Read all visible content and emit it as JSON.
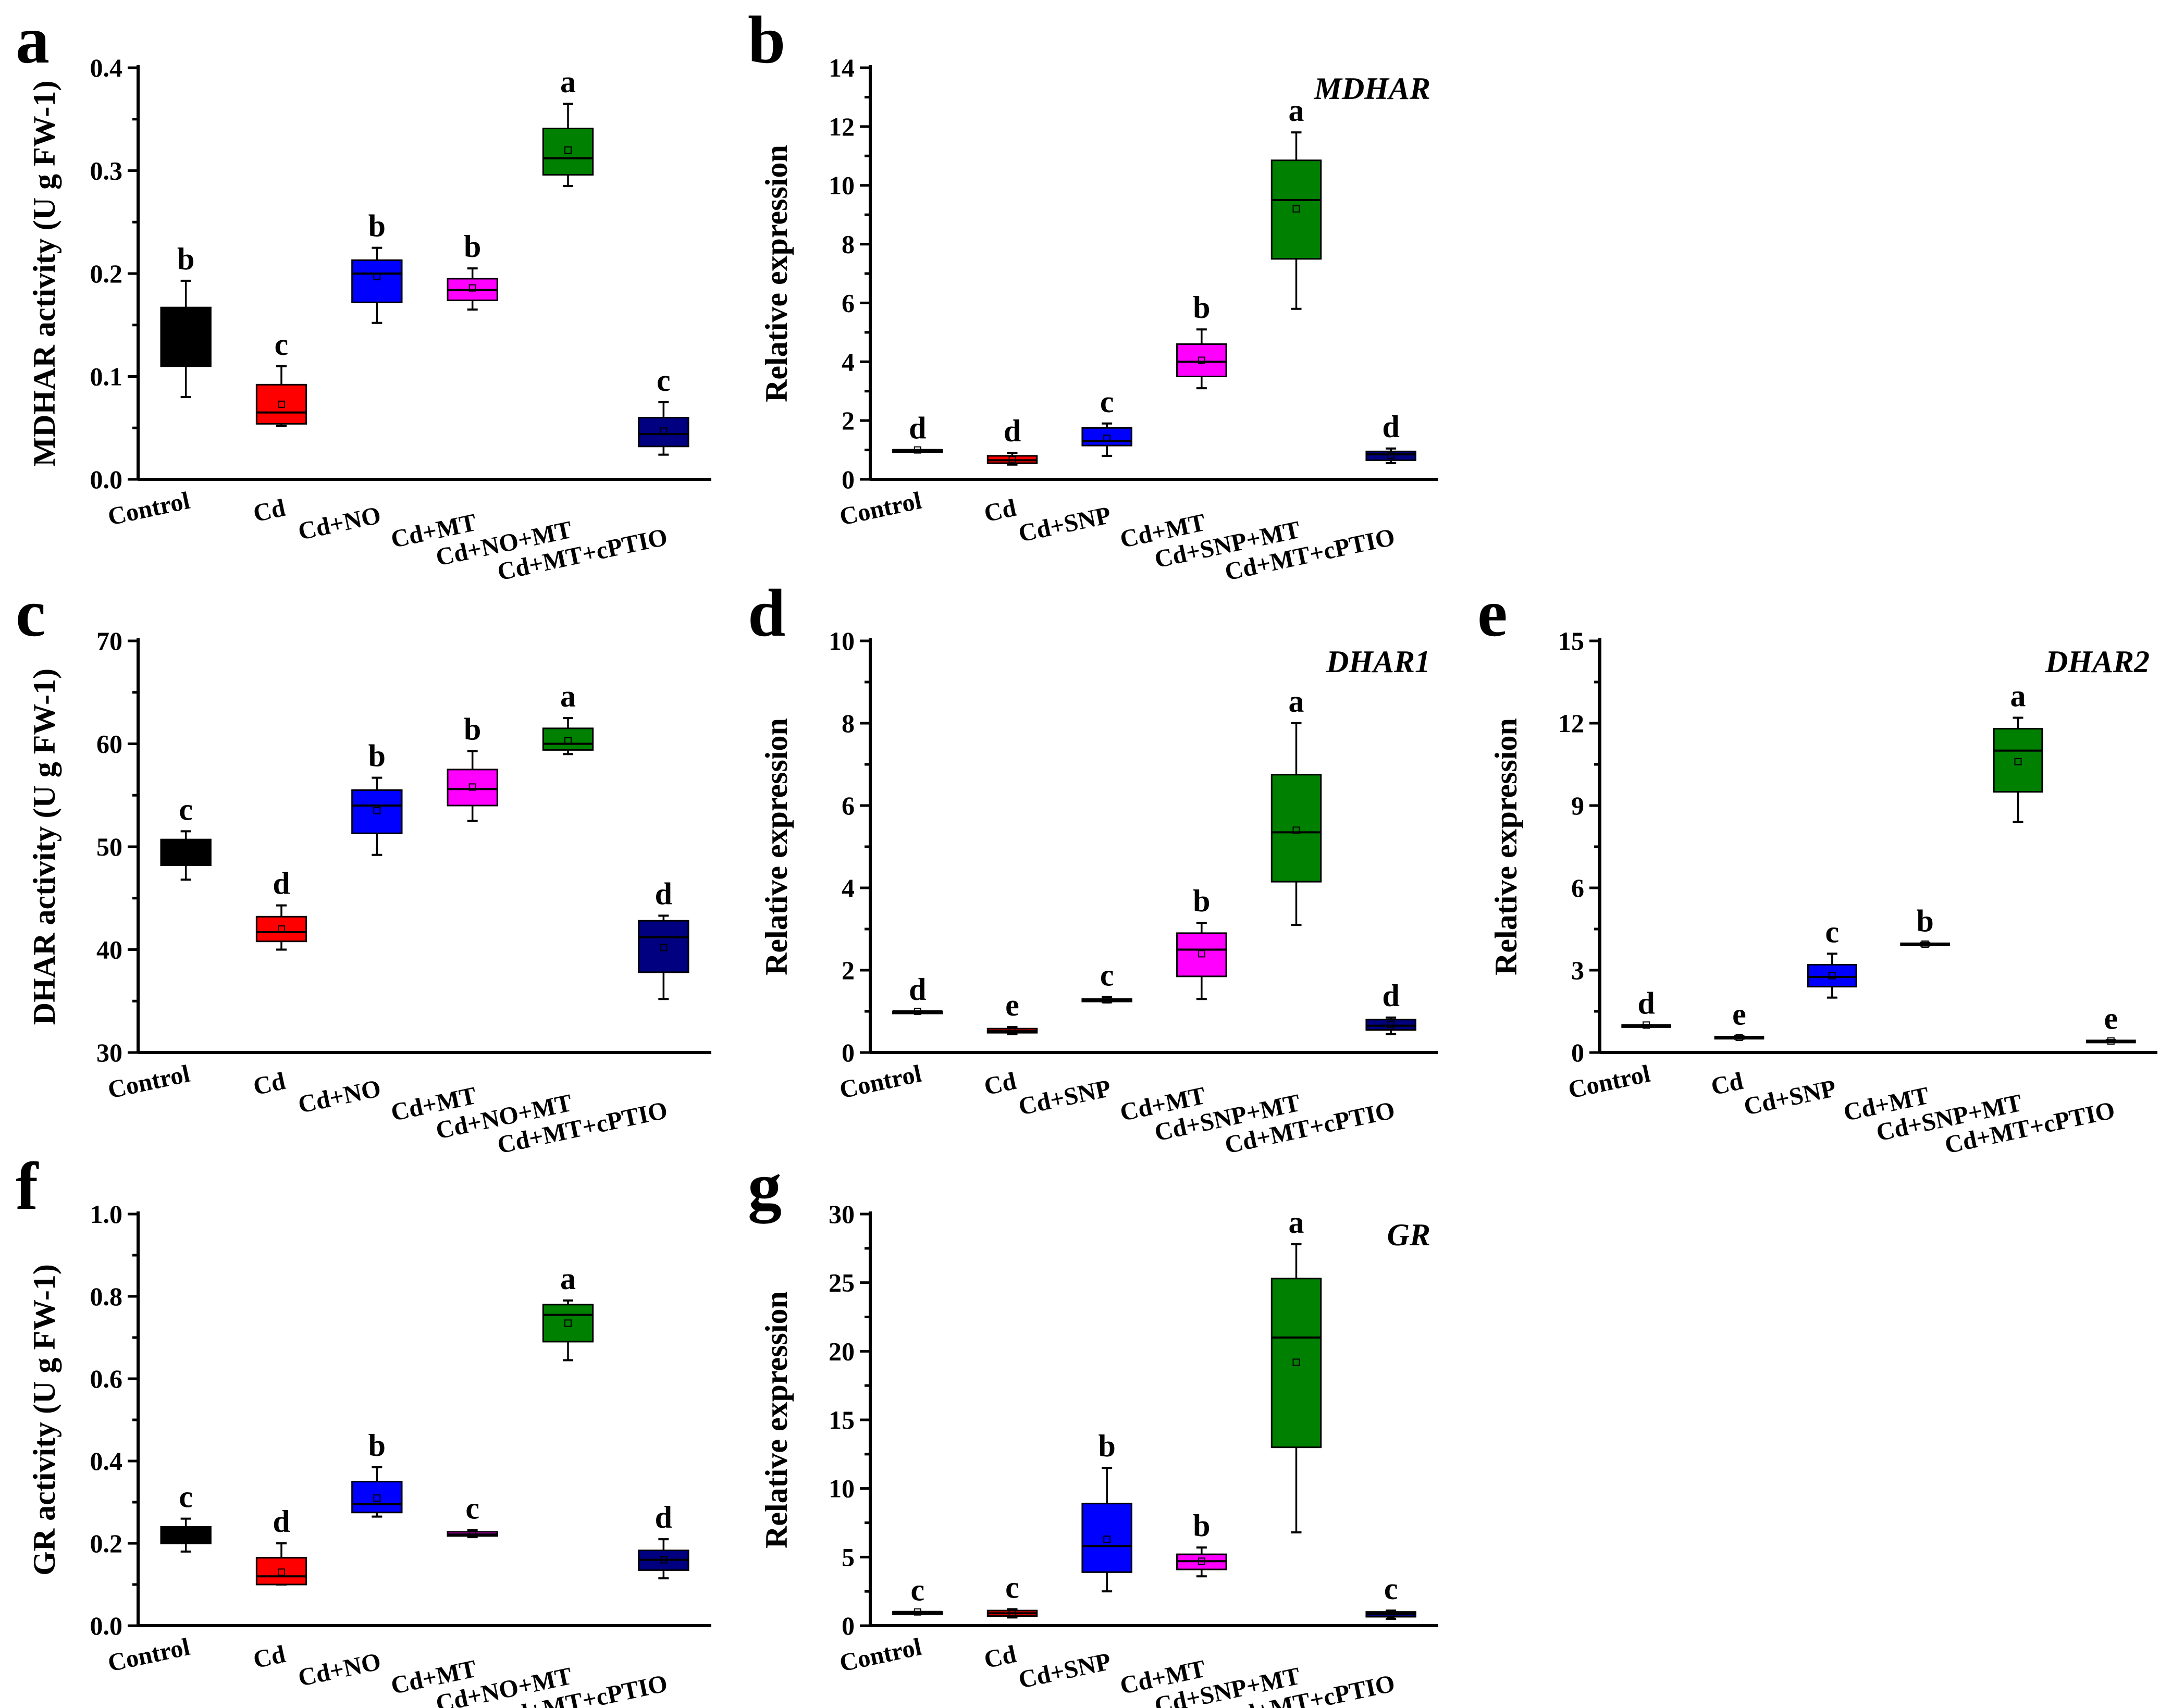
{
  "chart_data": [
    {
      "id": "a",
      "type": "box",
      "panel_label": "a",
      "title": "",
      "ylabel": "MDHAR activity (U g FW-1)",
      "ylim": [
        0,
        0.4
      ],
      "yticks": [
        0.0,
        0.1,
        0.2,
        0.3,
        0.4
      ],
      "ytick_labels": [
        "0.0",
        "0.1",
        "0.2",
        "0.3",
        "0.4"
      ],
      "categories": [
        "Control",
        "Cd",
        "Cd+NO",
        "Cd+MT",
        "Cd+NO+MT",
        "Cd+MT+cPTIO"
      ],
      "colors": [
        "#000000",
        "#ff0000",
        "#0000ff",
        "#ff00ff",
        "#008000",
        "#000080"
      ],
      "boxes": [
        {
          "min": 0.08,
          "q1": 0.11,
          "median": 0.165,
          "q3": 0.167,
          "max": 0.193,
          "mean": 0.14,
          "letter": "b"
        },
        {
          "min": 0.052,
          "q1": 0.054,
          "median": 0.065,
          "q3": 0.092,
          "max": 0.11,
          "mean": 0.073,
          "letter": "c"
        },
        {
          "min": 0.152,
          "q1": 0.172,
          "median": 0.2,
          "q3": 0.213,
          "max": 0.225,
          "mean": 0.197,
          "letter": "b"
        },
        {
          "min": 0.165,
          "q1": 0.174,
          "median": 0.184,
          "q3": 0.195,
          "max": 0.205,
          "mean": 0.186,
          "letter": "b"
        },
        {
          "min": 0.285,
          "q1": 0.296,
          "median": 0.312,
          "q3": 0.341,
          "max": 0.365,
          "mean": 0.32,
          "letter": "a"
        },
        {
          "min": 0.024,
          "q1": 0.032,
          "median": 0.044,
          "q3": 0.06,
          "max": 0.075,
          "mean": 0.047,
          "letter": "c"
        }
      ]
    },
    {
      "id": "b",
      "type": "box",
      "panel_label": "b",
      "title": "MDHAR",
      "ylabel": "Relative expression",
      "ylim": [
        0,
        14
      ],
      "yticks": [
        0,
        2,
        4,
        6,
        8,
        10,
        12,
        14
      ],
      "ytick_labels": [
        "0",
        "2",
        "4",
        "6",
        "8",
        "10",
        "12",
        "14"
      ],
      "categories": [
        "Control",
        "Cd",
        "Cd+SNP",
        "Cd+MT",
        "Cd+SNP+MT",
        "Cd+MT+cPTIO"
      ],
      "colors": [
        "#000000",
        "#ff0000",
        "#0000ff",
        "#ff00ff",
        "#008000",
        "#000080"
      ],
      "boxes": [
        {
          "min": 1.0,
          "q1": 1.0,
          "median": 1.0,
          "q3": 1.0,
          "max": 1.0,
          "mean": 1.0,
          "letter": "d"
        },
        {
          "min": 0.5,
          "q1": 0.55,
          "median": 0.65,
          "q3": 0.8,
          "max": 0.9,
          "mean": 0.67,
          "letter": "d"
        },
        {
          "min": 0.8,
          "q1": 1.15,
          "median": 1.3,
          "q3": 1.75,
          "max": 1.9,
          "mean": 1.4,
          "letter": "c"
        },
        {
          "min": 3.1,
          "q1": 3.5,
          "median": 4.0,
          "q3": 4.6,
          "max": 5.1,
          "mean": 4.05,
          "letter": "b"
        },
        {
          "min": 5.8,
          "q1": 7.5,
          "median": 9.5,
          "q3": 10.85,
          "max": 11.8,
          "mean": 9.2,
          "letter": "a"
        },
        {
          "min": 0.55,
          "q1": 0.65,
          "median": 0.85,
          "q3": 0.95,
          "max": 1.05,
          "mean": 0.82,
          "letter": "d"
        }
      ]
    },
    {
      "id": "c",
      "type": "box",
      "panel_label": "c",
      "title": "",
      "ylabel": "DHAR activity (U g FW-1)",
      "ylim": [
        30,
        70
      ],
      "yticks": [
        30,
        40,
        50,
        60,
        70
      ],
      "ytick_labels": [
        "30",
        "40",
        "50",
        "60",
        "70"
      ],
      "categories": [
        "Control",
        "Cd",
        "Cd+NO",
        "Cd+MT",
        "Cd+NO+MT",
        "Cd+MT+cPTIO"
      ],
      "colors": [
        "#000000",
        "#ff0000",
        "#0000ff",
        "#ff00ff",
        "#008000",
        "#000080"
      ],
      "boxes": [
        {
          "min": 46.8,
          "q1": 48.2,
          "median": 49.5,
          "q3": 50.7,
          "max": 51.5,
          "mean": 49.5,
          "letter": "c"
        },
        {
          "min": 40.0,
          "q1": 40.8,
          "median": 41.7,
          "q3": 43.2,
          "max": 44.3,
          "mean": 42.0,
          "letter": "d"
        },
        {
          "min": 49.2,
          "q1": 51.3,
          "median": 54.0,
          "q3": 55.5,
          "max": 56.7,
          "mean": 53.5,
          "letter": "b"
        },
        {
          "min": 52.5,
          "q1": 54.0,
          "median": 55.6,
          "q3": 57.5,
          "max": 59.3,
          "mean": 55.8,
          "letter": "b"
        },
        {
          "min": 59.0,
          "q1": 59.4,
          "median": 60.0,
          "q3": 61.5,
          "max": 62.5,
          "mean": 60.3,
          "letter": "a"
        },
        {
          "min": 35.2,
          "q1": 37.8,
          "median": 41.2,
          "q3": 42.8,
          "max": 43.3,
          "mean": 40.2,
          "letter": "d"
        }
      ]
    },
    {
      "id": "d",
      "type": "box",
      "panel_label": "d",
      "title": "DHAR1",
      "ylabel": "Relative expression",
      "ylim": [
        0,
        10
      ],
      "yticks": [
        0,
        2,
        4,
        6,
        8,
        10
      ],
      "ytick_labels": [
        "0",
        "2",
        "4",
        "6",
        "8",
        "10"
      ],
      "categories": [
        "Control",
        "Cd",
        "Cd+SNP",
        "Cd+MT",
        "Cd+SNP+MT",
        "Cd+MT+cPTIO"
      ],
      "colors": [
        "#000000",
        "#ff0000",
        "#0000ff",
        "#ff00ff",
        "#008000",
        "#000080"
      ],
      "boxes": [
        {
          "min": 1.0,
          "q1": 1.0,
          "median": 1.0,
          "q3": 1.0,
          "max": 1.0,
          "mean": 1.0,
          "letter": "d"
        },
        {
          "min": 0.45,
          "q1": 0.48,
          "median": 0.52,
          "q3": 0.58,
          "max": 0.62,
          "mean": 0.53,
          "letter": "e"
        },
        {
          "min": 1.22,
          "q1": 1.24,
          "median": 1.27,
          "q3": 1.3,
          "max": 1.35,
          "mean": 1.28,
          "letter": "c"
        },
        {
          "min": 1.3,
          "q1": 1.85,
          "median": 2.5,
          "q3": 2.9,
          "max": 3.15,
          "mean": 2.4,
          "letter": "b"
        },
        {
          "min": 3.1,
          "q1": 4.15,
          "median": 5.35,
          "q3": 6.75,
          "max": 8.0,
          "mean": 5.4,
          "letter": "a"
        },
        {
          "min": 0.45,
          "q1": 0.55,
          "median": 0.65,
          "q3": 0.8,
          "max": 0.85,
          "mean": 0.68,
          "letter": "d"
        }
      ]
    },
    {
      "id": "e",
      "type": "box",
      "panel_label": "e",
      "title": "DHAR2",
      "ylabel": "Relative expression",
      "ylim": [
        0,
        15
      ],
      "yticks": [
        0,
        3,
        6,
        9,
        12,
        15
      ],
      "ytick_labels": [
        "0",
        "3",
        "6",
        "9",
        "12",
        "15"
      ],
      "categories": [
        "Control",
        "Cd",
        "Cd+SNP",
        "Cd+MT",
        "Cd+SNP+MT",
        "Cd+MT+cPTIO"
      ],
      "colors": [
        "#000000",
        "#ff0000",
        "#0000ff",
        "#ff00ff",
        "#008000",
        "#000080"
      ],
      "boxes": [
        {
          "min": 1.0,
          "q1": 1.0,
          "median": 1.0,
          "q3": 1.0,
          "max": 1.0,
          "mean": 1.0,
          "letter": "d"
        },
        {
          "min": 0.5,
          "q1": 0.52,
          "median": 0.55,
          "q3": 0.58,
          "max": 0.6,
          "mean": 0.55,
          "letter": "e"
        },
        {
          "min": 2.0,
          "q1": 2.4,
          "median": 2.75,
          "q3": 3.2,
          "max": 3.6,
          "mean": 2.8,
          "letter": "c"
        },
        {
          "min": 3.9,
          "q1": 3.92,
          "median": 3.95,
          "q3": 3.98,
          "max": 4.0,
          "mean": 3.95,
          "letter": "b"
        },
        {
          "min": 8.4,
          "q1": 9.5,
          "median": 11.0,
          "q3": 11.8,
          "max": 12.2,
          "mean": 10.6,
          "letter": "a"
        },
        {
          "min": 0.38,
          "q1": 0.4,
          "median": 0.42,
          "q3": 0.44,
          "max": 0.45,
          "mean": 0.42,
          "letter": "e"
        }
      ]
    },
    {
      "id": "f",
      "type": "box",
      "panel_label": "f",
      "title": "",
      "ylabel": "GR activity (U g FW-1)",
      "ylim": [
        0,
        1.0
      ],
      "yticks": [
        0.0,
        0.2,
        0.4,
        0.6,
        0.8,
        1.0
      ],
      "ytick_labels": [
        "0.0",
        "0.2",
        "0.4",
        "0.6",
        "0.8",
        "1.0"
      ],
      "categories": [
        "Control",
        "Cd",
        "Cd+NO",
        "Cd+MT",
        "Cd+NO+MT",
        "Cd+MT+cPTIO"
      ],
      "colors": [
        "#000000",
        "#ff0000",
        "#0000ff",
        "#ff00ff",
        "#008000",
        "#000080"
      ],
      "boxes": [
        {
          "min": 0.18,
          "q1": 0.2,
          "median": 0.22,
          "q3": 0.24,
          "max": 0.26,
          "mean": 0.22,
          "letter": "c"
        },
        {
          "min": 0.1,
          "q1": 0.1,
          "median": 0.12,
          "q3": 0.165,
          "max": 0.2,
          "mean": 0.13,
          "letter": "d"
        },
        {
          "min": 0.265,
          "q1": 0.275,
          "median": 0.295,
          "q3": 0.35,
          "max": 0.385,
          "mean": 0.31,
          "letter": "b"
        },
        {
          "min": 0.215,
          "q1": 0.218,
          "median": 0.222,
          "q3": 0.228,
          "max": 0.232,
          "mean": 0.222,
          "letter": "c"
        },
        {
          "min": 0.645,
          "q1": 0.69,
          "median": 0.755,
          "q3": 0.78,
          "max": 0.79,
          "mean": 0.735,
          "letter": "a"
        },
        {
          "min": 0.115,
          "q1": 0.135,
          "median": 0.16,
          "q3": 0.183,
          "max": 0.21,
          "mean": 0.16,
          "letter": "d"
        }
      ]
    },
    {
      "id": "g",
      "type": "box",
      "panel_label": "g",
      "title": "GR",
      "ylabel": "Relative expression",
      "ylim": [
        0,
        30
      ],
      "yticks": [
        0,
        5,
        10,
        15,
        20,
        25,
        30
      ],
      "ytick_labels": [
        "0",
        "5",
        "10",
        "15",
        "20",
        "25",
        "30"
      ],
      "categories": [
        "Control",
        "Cd",
        "Cd+SNP",
        "Cd+MT",
        "Cd+SNP+MT",
        "Cd+MT+cPTIO"
      ],
      "colors": [
        "#000000",
        "#ff0000",
        "#0000ff",
        "#ff00ff",
        "#008000",
        "#000080"
      ],
      "boxes": [
        {
          "min": 1.0,
          "q1": 1.0,
          "median": 1.0,
          "q3": 1.0,
          "max": 1.0,
          "mean": 1.0,
          "letter": "c"
        },
        {
          "min": 0.6,
          "q1": 0.7,
          "median": 0.9,
          "q3": 1.1,
          "max": 1.2,
          "mean": 0.88,
          "letter": "c"
        },
        {
          "min": 2.5,
          "q1": 3.9,
          "median": 5.8,
          "q3": 8.9,
          "max": 11.5,
          "mean": 6.3,
          "letter": "b"
        },
        {
          "min": 3.6,
          "q1": 4.1,
          "median": 4.7,
          "q3": 5.2,
          "max": 5.7,
          "mean": 4.7,
          "letter": "b"
        },
        {
          "min": 6.8,
          "q1": 13.0,
          "median": 21.0,
          "q3": 25.3,
          "max": 27.8,
          "mean": 19.2,
          "letter": "a"
        },
        {
          "min": 0.5,
          "q1": 0.65,
          "median": 0.85,
          "q3": 1.0,
          "max": 1.1,
          "mean": 0.82,
          "letter": "c"
        }
      ]
    }
  ]
}
